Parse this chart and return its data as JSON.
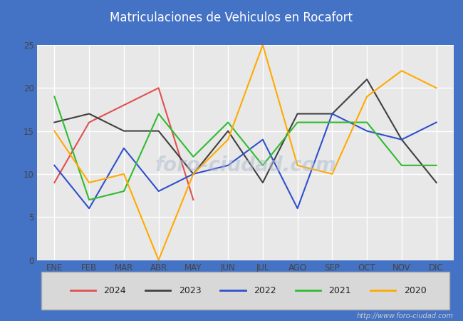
{
  "title": "Matriculaciones de Vehiculos en Rocafort",
  "title_bg": "#4472c4",
  "title_color": "#ffffff",
  "months": [
    "ENE",
    "FEB",
    "MAR",
    "ABR",
    "MAY",
    "JUN",
    "JUL",
    "AGO",
    "SEP",
    "OCT",
    "NOV",
    "DIC"
  ],
  "series": {
    "2024": {
      "color": "#e05050",
      "values": [
        9,
        16,
        18,
        20,
        7,
        null,
        null,
        null,
        null,
        null,
        null,
        null
      ]
    },
    "2023": {
      "color": "#404040",
      "values": [
        16,
        17,
        15,
        15,
        10,
        15,
        9,
        17,
        17,
        21,
        14,
        9
      ]
    },
    "2022": {
      "color": "#3050cc",
      "values": [
        11,
        6,
        13,
        8,
        10,
        11,
        14,
        6,
        17,
        15,
        14,
        16
      ]
    },
    "2021": {
      "color": "#30bb30",
      "values": [
        19,
        7,
        8,
        17,
        12,
        16,
        11,
        16,
        16,
        16,
        11,
        11
      ]
    },
    "2020": {
      "color": "#ffaa00",
      "values": [
        15,
        9,
        10,
        0,
        10,
        14,
        25,
        11,
        10,
        19,
        22,
        20
      ]
    }
  },
  "ylim": [
    0,
    25
  ],
  "yticks": [
    0,
    5,
    10,
    15,
    20,
    25
  ],
  "url": "http://www.foro-ciudad.com",
  "plot_bg": "#e8e8e8",
  "fig_bg": "#4472c4",
  "grid_color": "#ffffff",
  "legend_order": [
    "2024",
    "2023",
    "2022",
    "2021",
    "2020"
  ]
}
